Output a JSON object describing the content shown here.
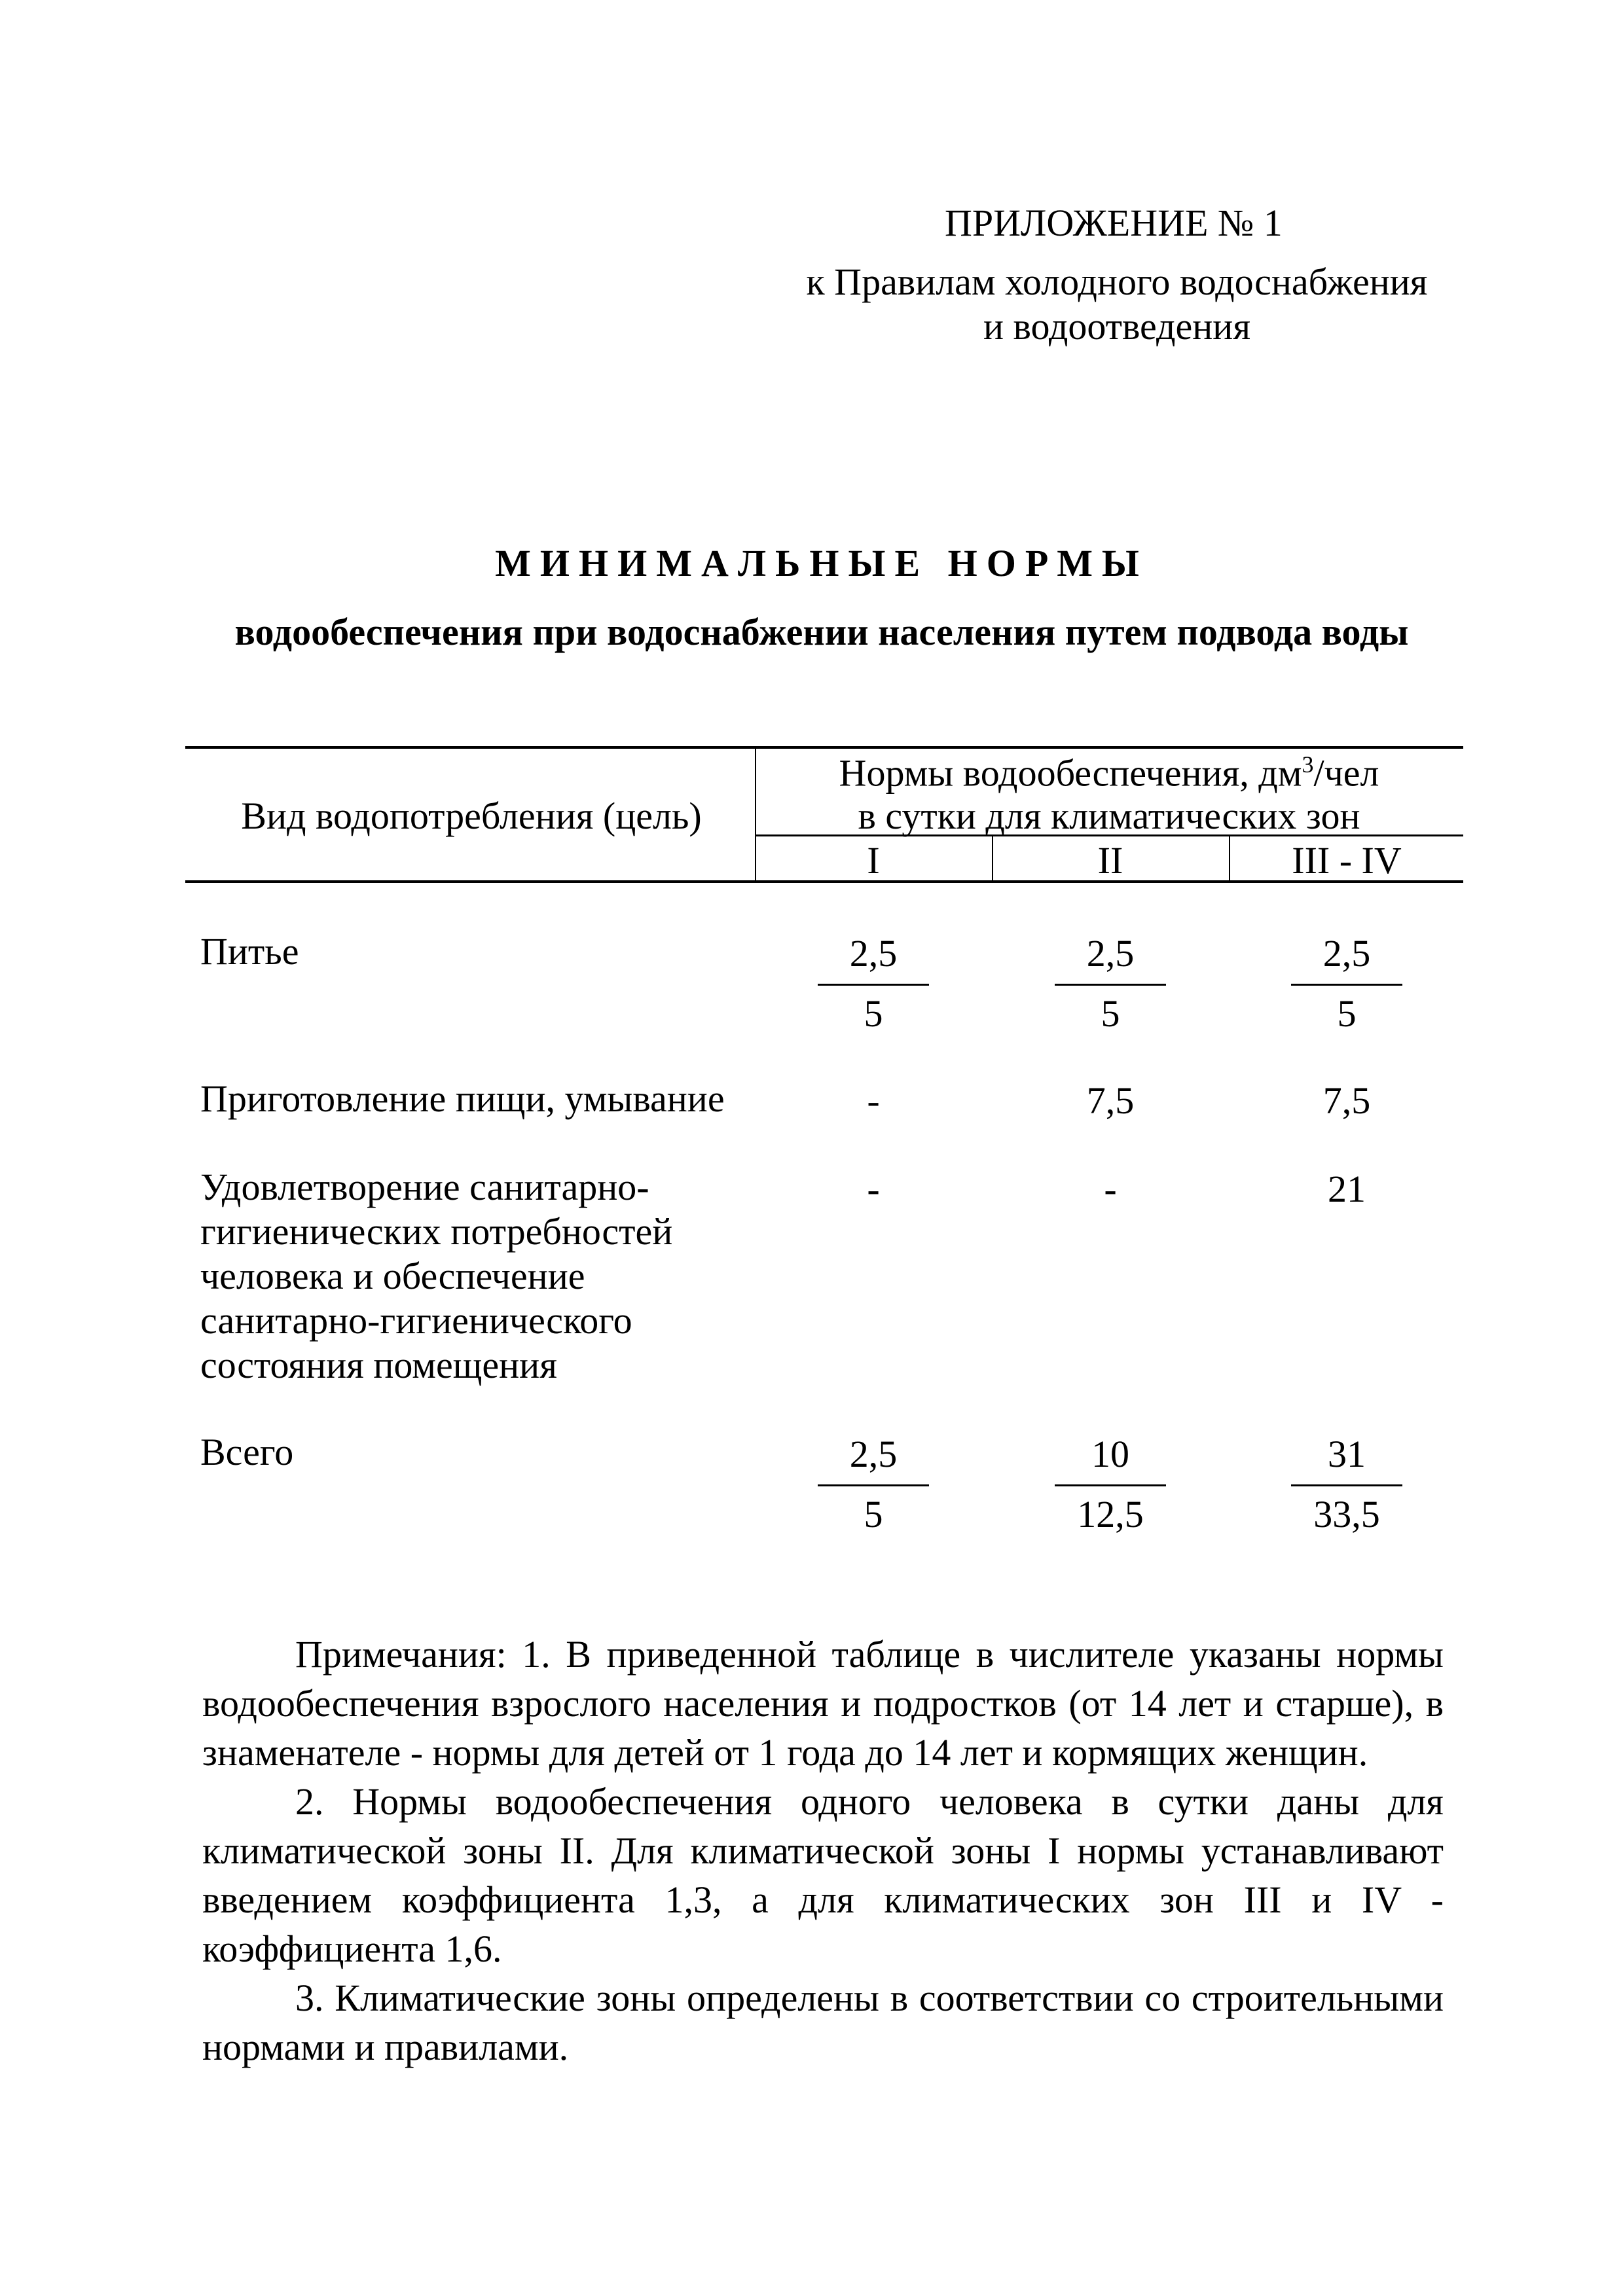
{
  "header": {
    "appendix": "ПРИЛОЖЕНИЕ № 1",
    "ref_line1": "к Правилам холодного водоснабжения",
    "ref_line2": "и водоотведения"
  },
  "title": {
    "main": "МИНИМАЛЬНЫЕ НОРМЫ",
    "sub": "водообеспечения при водоснабжении населения путем подвода воды"
  },
  "table": {
    "col_purpose": "Вид водопотребления (цель)",
    "col_norms_line1": "Нормы водообеспечения, дм",
    "col_norms_sup": "3",
    "col_norms_unit": "/чел",
    "col_norms_line2": "в сутки для климатических зон",
    "zones": [
      "I",
      "II",
      "III - IV"
    ],
    "rows": [
      {
        "label": [
          "Питье"
        ],
        "values": [
          {
            "num": "2,5",
            "den": "5"
          },
          {
            "num": "2,5",
            "den": "5"
          },
          {
            "num": "2,5",
            "den": "5"
          }
        ]
      },
      {
        "label": [
          "Приготовление пищи, умывание"
        ],
        "values": [
          {
            "num": "-"
          },
          {
            "num": "7,5"
          },
          {
            "num": "7,5"
          }
        ]
      },
      {
        "label": [
          "Удовлетворение санитарно-",
          "гигиенических потребностей",
          "человека и обеспечение",
          "санитарно-гигиенического",
          "состояния помещения"
        ],
        "values": [
          {
            "num": "-"
          },
          {
            "num": "-"
          },
          {
            "num": "21"
          }
        ]
      },
      {
        "label": [
          "Всего"
        ],
        "values": [
          {
            "num": "2,5",
            "den": "5"
          },
          {
            "num": "10",
            "den": "12,5"
          },
          {
            "num": "31",
            "den": "33,5"
          }
        ]
      }
    ]
  },
  "notes": [
    "Примечания: 1. В приведенной таблице в числителе указаны нормы водообеспечения взрослого населения и подростков (от 14 лет и старше), в знаменателе - нормы для детей от 1 года до 14 лет и кормящих женщин.",
    "2. Нормы водообеспечения одного человека в сутки даны для климатической зоны II. Для климатической зоны I нормы устанавливают введением коэффициента 1,3, а для климатических зон III и IV - коэффициента 1,6.",
    "3. Климатические зоны определены в соответствии со строительными нормами и правилами."
  ]
}
